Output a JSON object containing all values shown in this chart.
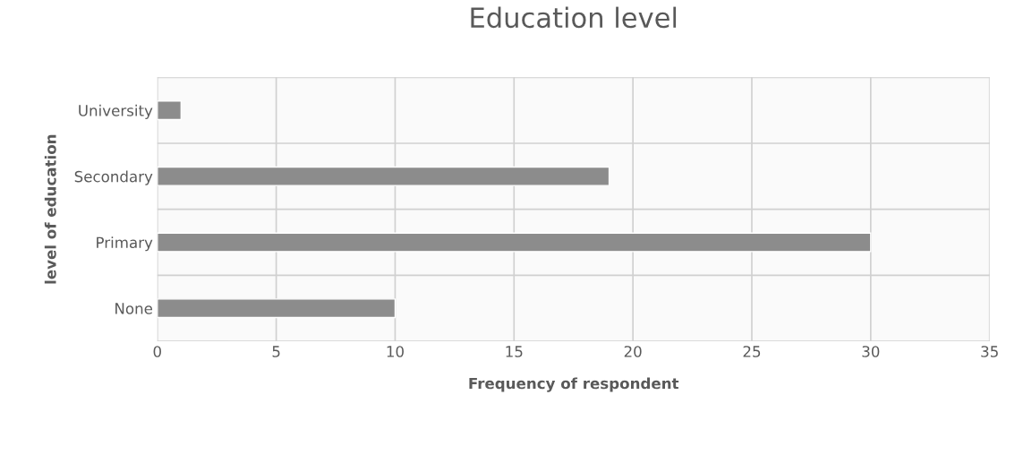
{
  "chart_data": {
    "type": "bar",
    "orientation": "horizontal",
    "title": "Education level",
    "xlabel": "Frequency of respondent",
    "ylabel": "level of education",
    "categories": [
      "University",
      "Secondary",
      "Primary",
      "None"
    ],
    "values": [
      1,
      19,
      30,
      10
    ],
    "color": "#8c8c8c",
    "xlim": [
      0,
      35
    ],
    "xticks": [
      0,
      5,
      10,
      15,
      20,
      25,
      30,
      35
    ],
    "grid": true
  }
}
